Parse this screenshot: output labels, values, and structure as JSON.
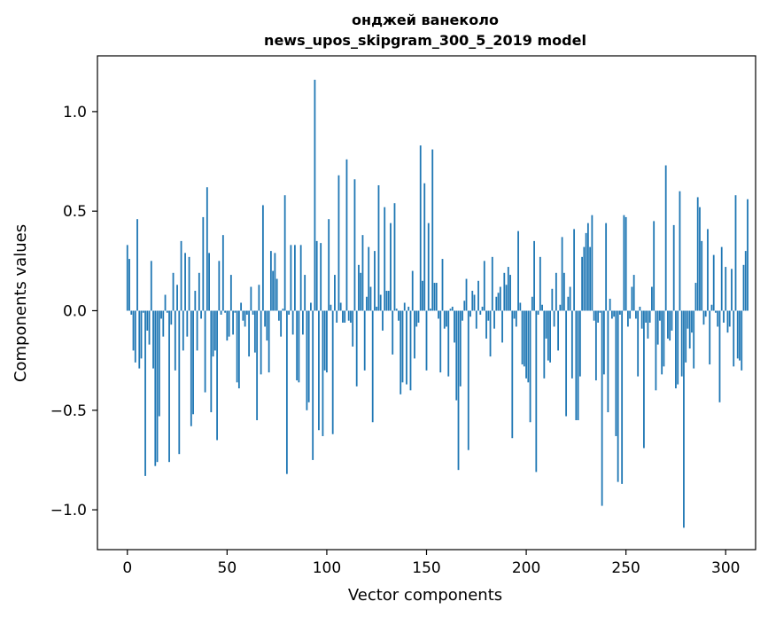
{
  "chart_data": {
    "type": "bar",
    "title_line1": "онджей ванеколо",
    "title_line2": "news_upos_skipgram_300_5_2019 model",
    "xlabel": "Vector components",
    "ylabel": "Components values",
    "xlim": [
      -15,
      315
    ],
    "ylim": [
      -1.2,
      1.28
    ],
    "xticks": [
      0,
      50,
      100,
      150,
      200,
      250,
      300
    ],
    "xtick_labels": [
      "0",
      "50",
      "100",
      "150",
      "200",
      "250",
      "300"
    ],
    "yticks": [
      -1.0,
      -0.5,
      0.0,
      0.5,
      1.0
    ],
    "ytick_labels": [
      "−1.0",
      "−0.5",
      "0.0",
      "0.5",
      "1.0"
    ],
    "bar_color": "#1f77b4",
    "values": [
      0.33,
      0.26,
      -0.02,
      -0.2,
      -0.26,
      0.46,
      -0.29,
      -0.24,
      -0.01,
      -0.83,
      -0.1,
      -0.17,
      0.25,
      -0.29,
      -0.78,
      -0.76,
      -0.53,
      -0.04,
      -0.13,
      0.08,
      -0.01,
      -0.76,
      -0.07,
      0.19,
      -0.3,
      0.13,
      -0.72,
      0.35,
      -0.2,
      0.29,
      -0.13,
      0.27,
      -0.58,
      -0.52,
      0.1,
      -0.2,
      0.19,
      -0.04,
      0.47,
      -0.41,
      0.62,
      0.29,
      -0.51,
      -0.23,
      -0.2,
      -0.65,
      0.25,
      -0.02,
      0.38,
      -0.01,
      -0.15,
      -0.13,
      0.18,
      -0.12,
      -0.01,
      -0.36,
      -0.39,
      0.04,
      -0.05,
      -0.08,
      -0.02,
      -0.23,
      0.12,
      -0.02,
      -0.21,
      -0.55,
      0.13,
      -0.32,
      0.53,
      -0.08,
      -0.15,
      -0.31,
      0.3,
      0.2,
      0.29,
      0.16,
      -0.05,
      -0.13,
      0.01,
      0.58,
      -0.82,
      -0.02,
      0.33,
      -0.12,
      0.33,
      -0.35,
      -0.36,
      0.33,
      -0.12,
      0.18,
      -0.5,
      -0.46,
      0.04,
      -0.75,
      1.16,
      0.35,
      -0.6,
      0.34,
      -0.63,
      -0.3,
      -0.31,
      0.46,
      0.03,
      -0.62,
      0.18,
      -0.06,
      0.68,
      0.04,
      -0.06,
      -0.06,
      0.76,
      -0.05,
      -0.06,
      -0.18,
      0.66,
      -0.38,
      0.23,
      0.19,
      0.38,
      -0.3,
      0.07,
      0.32,
      0.12,
      -0.56,
      0.3,
      0.02,
      0.63,
      0.08,
      -0.1,
      0.52,
      0.1,
      0.1,
      0.44,
      -0.22,
      0.54,
      0.01,
      -0.05,
      -0.42,
      -0.36,
      0.04,
      -0.37,
      0.02,
      -0.4,
      0.2,
      -0.24,
      -0.08,
      -0.06,
      0.83,
      0.15,
      0.64,
      -0.3,
      0.44,
      0.01,
      0.81,
      0.14,
      0.14,
      -0.04,
      -0.31,
      0.26,
      -0.09,
      -0.08,
      -0.33,
      0.01,
      0.02,
      -0.16,
      -0.45,
      -0.8,
      -0.38,
      -0.05,
      0.05,
      0.16,
      -0.7,
      -0.03,
      0.1,
      0.08,
      -0.09,
      0.15,
      -0.02,
      0.02,
      0.25,
      -0.14,
      -0.05,
      -0.23,
      0.27,
      -0.09,
      0.07,
      0.09,
      0.12,
      -0.16,
      0.19,
      0.13,
      0.22,
      0.18,
      -0.64,
      -0.04,
      -0.08,
      0.4,
      0.04,
      -0.27,
      -0.28,
      -0.34,
      -0.36,
      -0.56,
      0.07,
      0.35,
      -0.81,
      -0.02,
      0.27,
      0.03,
      -0.34,
      -0.14,
      -0.25,
      -0.26,
      0.11,
      -0.08,
      0.19,
      -0.2,
      0.03,
      0.37,
      0.19,
      -0.53,
      0.07,
      0.12,
      -0.34,
      0.41,
      -0.55,
      -0.55,
      -0.33,
      0.27,
      0.32,
      0.39,
      0.44,
      0.32,
      0.48,
      -0.05,
      -0.35,
      -0.06,
      -0.01,
      -0.98,
      -0.32,
      0.44,
      -0.51,
      0.06,
      -0.04,
      -0.03,
      -0.63,
      -0.86,
      -0.02,
      -0.87,
      0.48,
      0.47,
      -0.08,
      -0.04,
      0.12,
      0.18,
      -0.04,
      -0.33,
      0.02,
      -0.09,
      -0.69,
      -0.06,
      -0.14,
      -0.06,
      0.12,
      0.45,
      -0.4,
      -0.17,
      -0.05,
      -0.32,
      -0.28,
      0.73,
      -0.14,
      -0.15,
      -0.1,
      0.43,
      -0.39,
      -0.37,
      0.6,
      -0.33,
      -1.09,
      -0.26,
      -0.09,
      -0.19,
      -0.11,
      -0.29,
      0.14,
      0.57,
      0.52,
      0.35,
      -0.07,
      -0.03,
      0.41,
      -0.27,
      0.03,
      0.28,
      -0.01,
      -0.08,
      -0.46,
      0.32,
      -0.06,
      0.22,
      -0.11,
      -0.08,
      0.21,
      -0.28,
      0.58,
      -0.24,
      -0.25,
      -0.3,
      0.23,
      0.3,
      0.56
    ],
    "grid": false,
    "legend": "none"
  }
}
